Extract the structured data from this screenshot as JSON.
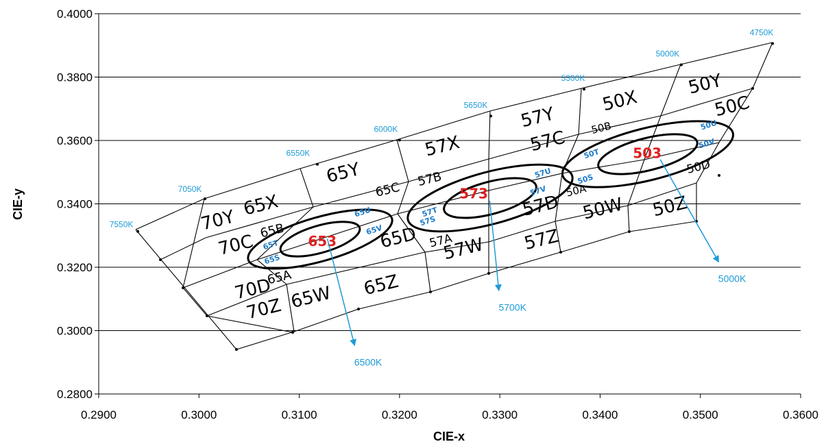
{
  "colors": {
    "cct_blue": "#1E9BD7",
    "center_red": "#E02020",
    "sub_blue": "#1E7BC8",
    "grid": "#000000",
    "ellipse": "#000000"
  },
  "chart_data": {
    "type": "scatter",
    "xlabel": "CIE-x",
    "ylabel": "CIE-y",
    "xlim": [
      0.29,
      0.36
    ],
    "ylim": [
      0.28,
      0.4
    ],
    "grid": "horizontal",
    "x_ticks": [
      "0.2900",
      "0.3000",
      "0.3100",
      "0.3200",
      "0.3300",
      "0.3400",
      "0.3500",
      "0.3600"
    ],
    "y_ticks": [
      "0.2800",
      "0.3000",
      "0.3200",
      "0.3400",
      "0.3600",
      "0.3800",
      "0.4000"
    ],
    "cct_points": [
      {
        "label": "7550K",
        "x": 0.2939,
        "y": 0.3313
      },
      {
        "label": "7050K",
        "x": 0.3006,
        "y": 0.3416
      },
      {
        "label": "6550K",
        "x": 0.3118,
        "y": 0.3525
      },
      {
        "label": "6000K",
        "x": 0.32,
        "y": 0.3601
      },
      {
        "label": "5650K",
        "x": 0.3291,
        "y": 0.3677
      },
      {
        "label": "5300K",
        "x": 0.3384,
        "y": 0.3762
      },
      {
        "label": "5000K",
        "x": 0.3481,
        "y": 0.3839
      },
      {
        "label": "4750K",
        "x": 0.3572,
        "y": 0.3906
      }
    ],
    "bins": [
      {
        "label": "70Y",
        "x": 0.302,
        "y": 0.333
      },
      {
        "label": "65X",
        "x": 0.3063,
        "y": 0.3378
      },
      {
        "label": "70C",
        "x": 0.3038,
        "y": 0.3252
      },
      {
        "label": "65B",
        "x": 0.3074,
        "y": 0.3303
      },
      {
        "label": "70D",
        "x": 0.3055,
        "y": 0.3113
      },
      {
        "label": "65A",
        "x": 0.3081,
        "y": 0.3156
      },
      {
        "label": "70Z",
        "x": 0.3066,
        "y": 0.305
      },
      {
        "label": "65W",
        "x": 0.3113,
        "y": 0.3087
      },
      {
        "label": "65Z",
        "x": 0.3183,
        "y": 0.3126
      },
      {
        "label": "65Y",
        "x": 0.3145,
        "y": 0.348
      },
      {
        "label": "65C",
        "x": 0.3189,
        "y": 0.3432
      },
      {
        "label": "65D",
        "x": 0.32,
        "y": 0.3275
      },
      {
        "label": "57X",
        "x": 0.3244,
        "y": 0.3564
      },
      {
        "label": "57B",
        "x": 0.3231,
        "y": 0.3466
      },
      {
        "label": "57A",
        "x": 0.3242,
        "y": 0.3272
      },
      {
        "label": "57W",
        "x": 0.3265,
        "y": 0.324
      },
      {
        "label": "57Z",
        "x": 0.3343,
        "y": 0.3269
      },
      {
        "label": "57Y",
        "x": 0.3339,
        "y": 0.3655
      },
      {
        "label": "57C",
        "x": 0.3349,
        "y": 0.358
      },
      {
        "label": "57D",
        "x": 0.3342,
        "y": 0.3376
      },
      {
        "label": "50X",
        "x": 0.3421,
        "y": 0.3707
      },
      {
        "label": "50Y",
        "x": 0.3506,
        "y": 0.376
      },
      {
        "label": "50C",
        "x": 0.3533,
        "y": 0.369
      },
      {
        "label": "50B",
        "x": 0.3402,
        "y": 0.3629
      },
      {
        "label": "50A",
        "x": 0.3377,
        "y": 0.3431
      },
      {
        "label": "50D",
        "x": 0.3499,
        "y": 0.3505
      },
      {
        "label": "50W",
        "x": 0.3404,
        "y": 0.3367
      },
      {
        "label": "50Z",
        "x": 0.3471,
        "y": 0.3374
      }
    ],
    "ellipse_groups": [
      {
        "center_label": "653",
        "x": 0.3123,
        "y": 0.3282,
        "subbins": [
          "65T",
          "65S",
          "65U",
          "65V"
        ]
      },
      {
        "center_label": "573",
        "x": 0.3274,
        "y": 0.3432,
        "subbins": [
          "57T",
          "57S",
          "57U",
          "57V"
        ]
      },
      {
        "center_label": "503",
        "x": 0.3447,
        "y": 0.356,
        "subbins": [
          "50T",
          "50S",
          "50U",
          "50V"
        ]
      }
    ],
    "annotations": [
      {
        "label": "6500K",
        "from_x": 0.3128,
        "from_y": 0.329,
        "x": 0.3155,
        "y": 0.2955
      },
      {
        "label": "5700K",
        "from_x": 0.329,
        "from_y": 0.3409,
        "x": 0.3299,
        "y": 0.3128
      },
      {
        "label": "5000K",
        "from_x": 0.346,
        "from_y": 0.354,
        "x": 0.3518,
        "y": 0.3218
      }
    ]
  }
}
